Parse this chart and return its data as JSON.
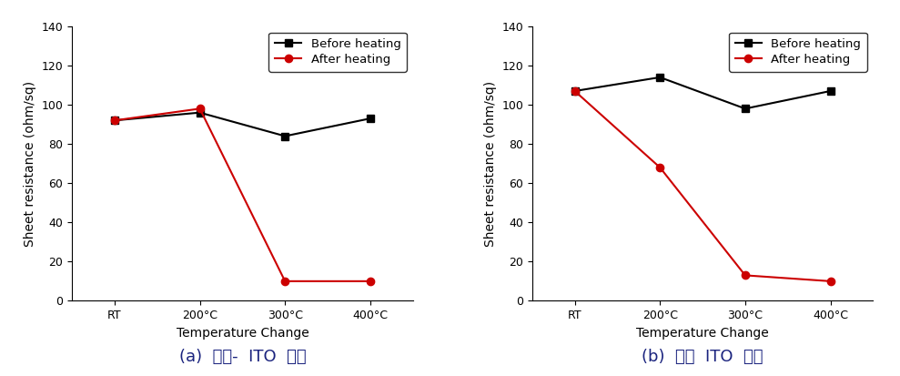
{
  "x_labels": [
    "RT",
    "200°C",
    "300°C",
    "400°C"
  ],
  "x_values": [
    0,
    1,
    2,
    3
  ],
  "chart_a": {
    "before_heating": [
      92,
      96,
      84,
      93
    ],
    "after_heating": [
      92,
      98,
      10,
      10
    ]
  },
  "chart_b": {
    "before_heating": [
      107,
      114,
      98,
      107
    ],
    "after_heating": [
      107,
      68,
      13,
      10
    ]
  },
  "ylabel": "Sheet resistance (ohm/sq)",
  "xlabel": "Temperature Change",
  "ylim": [
    0,
    140
  ],
  "yticks": [
    0,
    20,
    40,
    60,
    80,
    100,
    120,
    140
  ],
  "legend_before": "Before heating",
  "legend_after": "After heating",
  "before_color": "#000000",
  "after_color": "#cc0000",
  "caption_a": "(a)  상용-  ITO  타겟",
  "caption_b": "(b)  재생  ITO  타겟",
  "caption_color": "#1a237e",
  "caption_fontsize": 13,
  "axis_fontsize": 10,
  "tick_fontsize": 9,
  "legend_fontsize": 9.5,
  "marker_before": "s",
  "marker_after": "o",
  "linewidth": 1.5,
  "markersize": 6
}
